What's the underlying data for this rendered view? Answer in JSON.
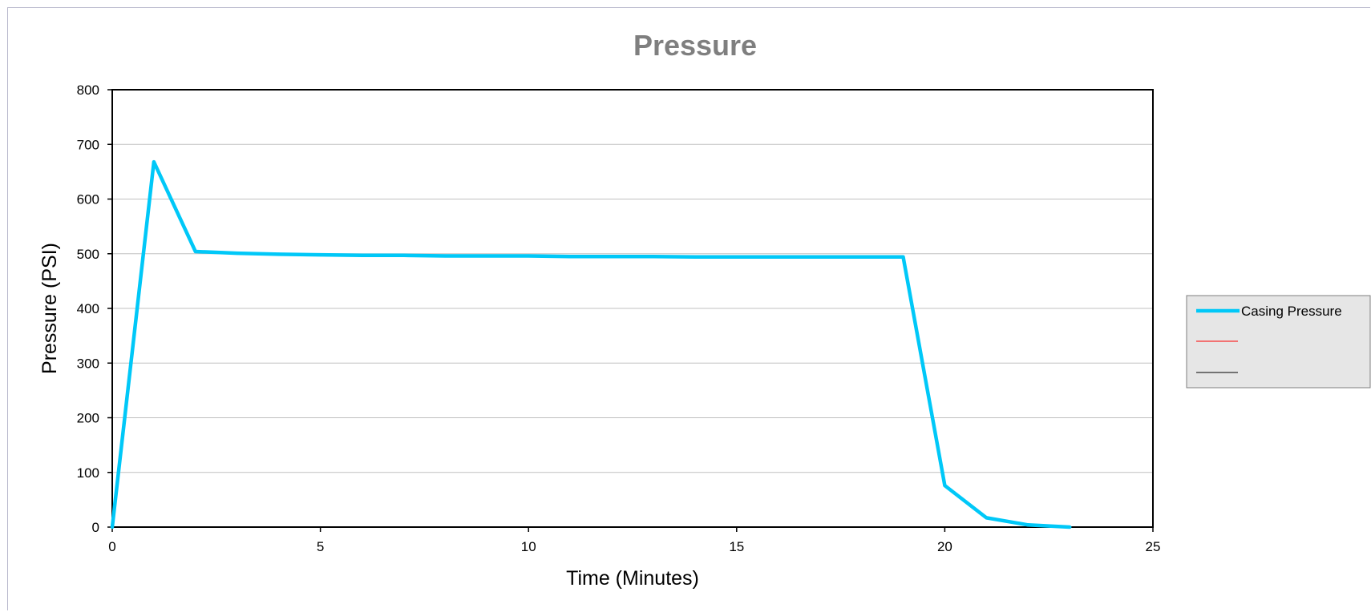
{
  "chart_data": {
    "type": "line",
    "title": "Pressure",
    "xlabel": "Time (Minutes)",
    "ylabel": "Pressure (PSI)",
    "xlim": [
      0,
      25
    ],
    "ylim": [
      0,
      800
    ],
    "x_ticks": [
      "0",
      "5",
      "10",
      "15",
      "20",
      "25"
    ],
    "y_ticks": [
      "0",
      "100",
      "200",
      "300",
      "400",
      "500",
      "600",
      "700",
      "800"
    ],
    "grid": "horizontal major gridlines",
    "legend_position": "right",
    "series": [
      {
        "name": "Casing Pressure",
        "color": "#00c8f8",
        "x": [
          0,
          1,
          2,
          3,
          4,
          5,
          6,
          7,
          8,
          9,
          10,
          11,
          12,
          13,
          14,
          15,
          16,
          17,
          18,
          19,
          20,
          21,
          22,
          23
        ],
        "y": [
          0,
          668,
          504,
          501,
          499,
          498,
          497,
          497,
          496,
          496,
          496,
          495,
          495,
          495,
          494,
          494,
          494,
          494,
          494,
          494,
          76,
          17,
          4,
          0
        ]
      }
    ],
    "legend_entries": [
      {
        "label": "Casing Pressure",
        "color": "#00c8f8"
      },
      {
        "label": "",
        "color": "#ff0000"
      },
      {
        "label": "",
        "color": "#000000"
      }
    ]
  }
}
